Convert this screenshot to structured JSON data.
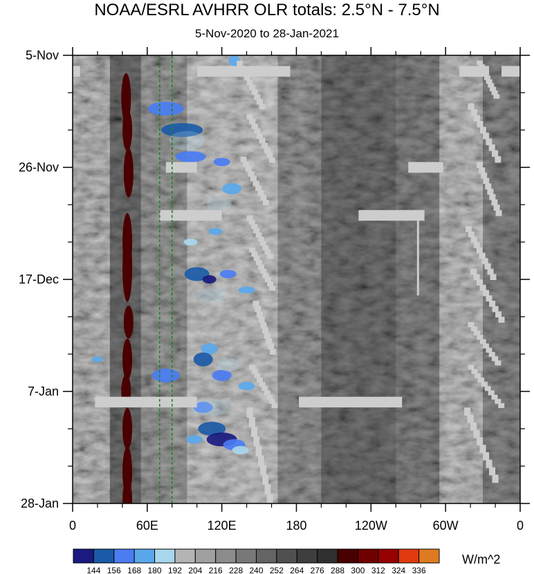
{
  "chart_data": {
    "type": "heatmap",
    "title": "NOAA/ESRL AVHRR OLR totals: 2.5°N - 7.5°N",
    "subtitle": "5-Nov-2020 to 28-Jan-2021",
    "x_tick_labels": [
      "0",
      "60E",
      "120E",
      "180",
      "120W",
      "60W",
      "0"
    ],
    "x_ticks_deg": [
      0,
      60,
      120,
      180,
      240,
      300,
      360
    ],
    "xlim_deg": [
      0,
      360
    ],
    "y_tick_labels": [
      "5-Nov",
      "26-Nov",
      "17-Dec",
      "7-Jan",
      "28-Jan"
    ],
    "y_ticks_day": [
      0,
      21,
      42,
      63,
      84
    ],
    "ylim_day": [
      0,
      84
    ],
    "y_axis_direction": "time increases downward",
    "units": "W/m^2",
    "colorbar": {
      "levels": [
        "144",
        "156",
        "168",
        "180",
        "192",
        "204",
        "216",
        "228",
        "240",
        "252",
        "264",
        "276",
        "288",
        "300",
        "312",
        "324",
        "336"
      ],
      "colors": [
        "#1a1a80",
        "#1b5aa6",
        "#4a7cf2",
        "#5aa8ec",
        "#a8d6ec",
        "#b4b4b4",
        "#a0a0a0",
        "#8c8c8c",
        "#787878",
        "#646464",
        "#505050",
        "#3e3e3e",
        "#303030",
        "#4a0000",
        "#6e0000",
        "#960000",
        "#e03a10",
        "#e07a20"
      ],
      "placement": "bottom"
    },
    "reference_lines_deg": [
      70,
      80
    ],
    "reference_line_color": "#1a8a1a",
    "missing_color": "#cdcdcd"
  }
}
